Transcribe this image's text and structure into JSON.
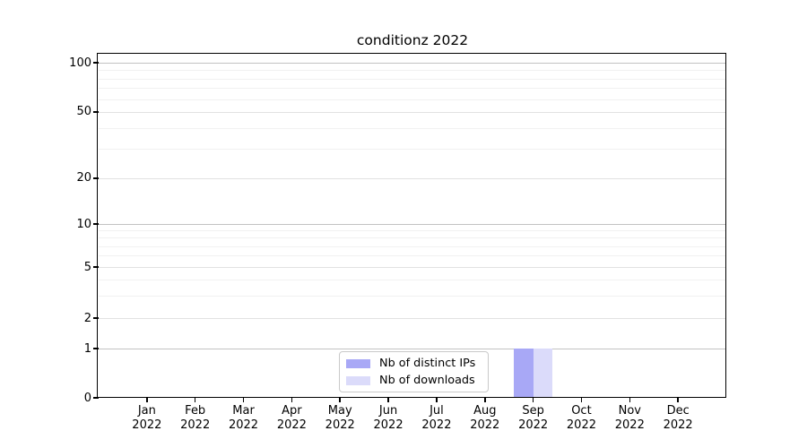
{
  "chart_data": {
    "type": "bar",
    "title": "conditionz 2022",
    "x_axis": {
      "categories": [
        "Jan",
        "Feb",
        "Mar",
        "Apr",
        "May",
        "Jun",
        "Jul",
        "Aug",
        "Sep",
        "Oct",
        "Nov",
        "Dec"
      ],
      "year_label": "2022"
    },
    "y_axis": {
      "scale": "symlog",
      "tick_values": [
        100,
        50,
        20,
        10,
        5,
        2,
        1,
        0
      ],
      "tick_labels": [
        "100",
        "50",
        "20",
        "10",
        "5",
        "2",
        "1",
        "0"
      ],
      "range": [
        0,
        115
      ],
      "grid": true
    },
    "series": [
      {
        "name": "Nb of distinct IPs",
        "color": "#a8a8f6",
        "values": [
          0,
          0,
          0,
          0,
          0,
          0,
          0,
          0,
          1,
          0,
          0,
          0
        ]
      },
      {
        "name": "Nb of downloads",
        "color": "#dbdbfa",
        "values": [
          0,
          0,
          0,
          0,
          0,
          0,
          0,
          0,
          1,
          0,
          0,
          0
        ]
      }
    ],
    "legend": {
      "position": "lower center",
      "entries": [
        "Nb of distinct IPs",
        "Nb of downloads"
      ]
    }
  },
  "colors": {
    "spine": "#000000",
    "grid_decade": "#c2c2c2",
    "grid_major": "#e2e2e2",
    "grid_minor": "#f1f1f1",
    "background": "#ffffff"
  }
}
